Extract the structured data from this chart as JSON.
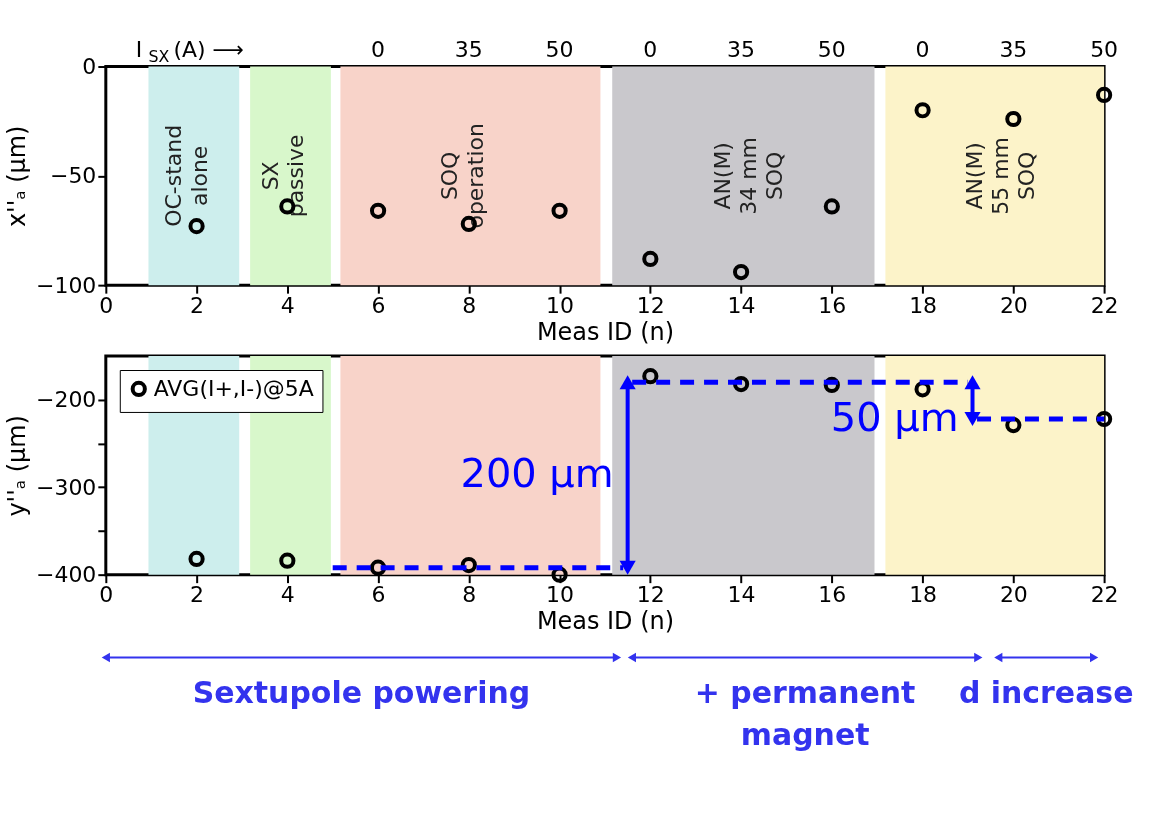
{
  "chart_data": [
    {
      "type": "scatter",
      "xlabel": "Meas ID (n)",
      "ylabel": "x''ₐ (µm)",
      "x2label": "I$_{SX}$ (A) ⟶",
      "xlim": [
        0,
        22
      ],
      "xticks": [
        0,
        2,
        4,
        6,
        8,
        10,
        12,
        14,
        16,
        18,
        20,
        22
      ],
      "ylim": [
        -100,
        0
      ],
      "yticks": [
        -100,
        -50,
        0
      ],
      "bands": [
        {
          "axis": "x",
          "from": 0.94,
          "to": 2.94,
          "label": "OC-stand\nalone",
          "color": "#cdeeed"
        },
        {
          "axis": "x",
          "from": 3.18,
          "to": 4.96,
          "label": "SX\npassive",
          "color": "#d8f7cb"
        },
        {
          "axis": "x",
          "from": 5.17,
          "to": 10.9,
          "label": "SOQ\noperation",
          "color": "#f8d3c9"
        },
        {
          "axis": "x",
          "from": 11.16,
          "to": 16.94,
          "label": "AN(M)\n34 mm\nSOQ",
          "color": "#c9c8cc"
        },
        {
          "axis": "x",
          "from": 17.18,
          "to": 22,
          "label": "AN(M)\n55 mm\nSOQ",
          "color": "#fcf3c9"
        }
      ],
      "series": [
        {
          "color": "#000000",
          "x": [
            2,
            4,
            6,
            8,
            10,
            12,
            14,
            16,
            18,
            20,
            22
          ],
          "values": [
            -73,
            -64,
            -66,
            -72,
            -66,
            -88,
            -94,
            -64,
            -20,
            -24,
            -13
          ]
        }
      ],
      "annotations": [
        "0",
        "35",
        "50",
        "0",
        "35",
        "50",
        "0",
        "35",
        "50"
      ],
      "marker": "circle",
      "grid": false,
      "legend": false
    },
    {
      "type": "scatter",
      "xlabel": "Meas ID (n)",
      "ylabel": "y''ₐ (µm)",
      "xlim": [
        0,
        22
      ],
      "xticks": [
        0,
        2,
        4,
        6,
        8,
        10,
        12,
        14,
        16,
        18,
        20,
        22
      ],
      "ylim": [
        -400,
        -150
      ],
      "yticks": [
        -400,
        {
          "value": -350,
          "label": null
        },
        -300,
        {
          "value": -250,
          "label": null
        },
        -200
      ],
      "bands": [
        {
          "axis": "x",
          "from": 0.94,
          "to": 2.94,
          "color": "#cdeeed"
        },
        {
          "axis": "x",
          "from": 3.18,
          "to": 4.96,
          "color": "#d8f7cb"
        },
        {
          "axis": "x",
          "from": 5.17,
          "to": 10.9,
          "color": "#f8d3c9"
        },
        {
          "axis": "x",
          "from": 11.16,
          "to": 16.94,
          "color": "#c9c8cc"
        },
        {
          "axis": "x",
          "from": 17.18,
          "to": 22,
          "color": "#fcf3c9"
        }
      ],
      "series": [
        {
          "name": "AVG(I+,I-)@5A",
          "color": "#000000",
          "x": [
            2,
            4,
            6,
            8,
            10,
            12,
            14,
            16,
            18,
            20,
            22
          ],
          "values": [
            -382,
            -384,
            -392,
            -389,
            -400,
            -173,
            -182,
            -183,
            -188,
            -229,
            -222
          ]
        },
        {
          "type": "line",
          "line_style": "dashed",
          "marker": "none",
          "color": "#0000ff",
          "x": [
            5,
            11.4
          ],
          "values": [
            -392,
            -392
          ]
        },
        {
          "type": "line",
          "line_style": "dashed",
          "marker": "none",
          "color": "#0000ff",
          "x": [
            11.6,
            19.0
          ],
          "values": [
            -180,
            -180
          ]
        },
        {
          "type": "line",
          "line_style": "dashed",
          "marker": "none",
          "color": "#0000ff",
          "x": [
            19.2,
            22
          ],
          "values": [
            -222,
            -222
          ]
        },
        {
          "type": "line",
          "line_style": "solid",
          "marker": "triangle",
          "color": "#0000ff",
          "x": [
            11.5,
            11.5
          ],
          "values": [
            -392,
            -180
          ]
        },
        {
          "type": "line",
          "line_style": "solid",
          "marker": "triangle",
          "color": "#0000ff",
          "x": [
            19.1,
            19.1
          ],
          "values": [
            -180,
            -222
          ]
        }
      ],
      "annotations": [
        "200 µm",
        "50 µm",
        "Sextupole powering",
        "+ permanent\nmagnet",
        "d increase"
      ],
      "marker": "circle",
      "grid": false,
      "legend": "top left"
    }
  ]
}
